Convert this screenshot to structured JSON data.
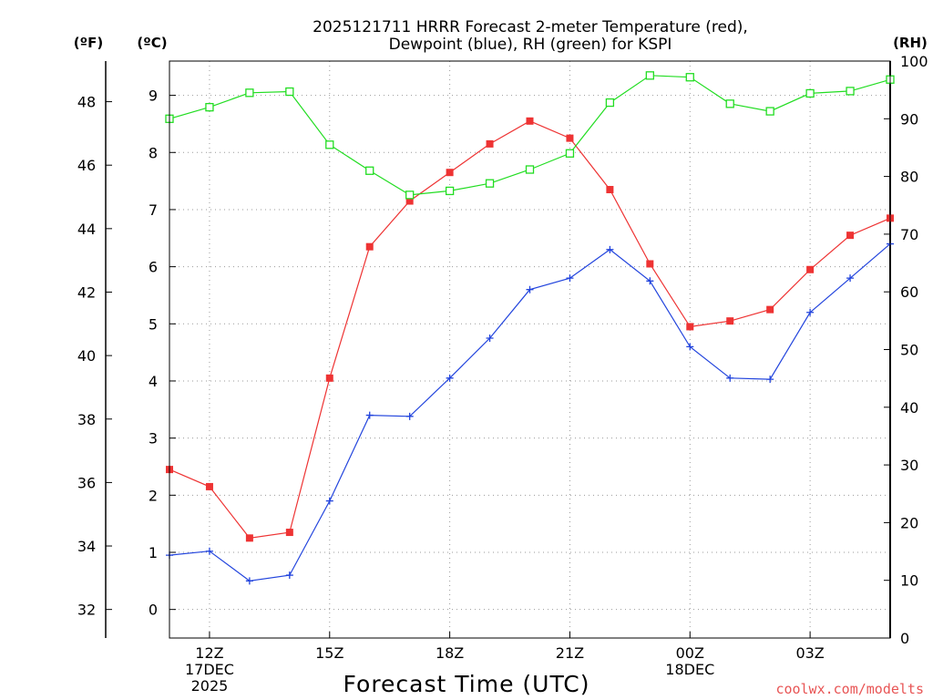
{
  "chart_data": {
    "type": "line",
    "title_line1": "2025121711 HRRR Forecast 2-meter Temperature (red),",
    "title_line2": "Dewpoint (blue), RH (green) for KSPI",
    "xlabel": "Forecast Time (UTC)",
    "credit": "coolwx.com/modelts",
    "units": {
      "fahrenheit": "(ºF)",
      "celsius": "(ºC)",
      "rh": "(RH)"
    },
    "x_hours": [
      11,
      12,
      13,
      14,
      15,
      16,
      17,
      18,
      19,
      20,
      21,
      22,
      23,
      24,
      25,
      26,
      27,
      28,
      29
    ],
    "x_ticks": [
      {
        "hour": 12,
        "lines": [
          "12Z",
          "17DEC",
          "2025"
        ]
      },
      {
        "hour": 15,
        "lines": [
          "15Z"
        ]
      },
      {
        "hour": 18,
        "lines": [
          "18Z"
        ]
      },
      {
        "hour": 21,
        "lines": [
          "21Z"
        ]
      },
      {
        "hour": 24,
        "lines": [
          "00Z",
          "18DEC"
        ]
      },
      {
        "hour": 27,
        "lines": [
          "03Z"
        ]
      }
    ],
    "xlim": [
      11,
      29
    ],
    "celsius_axis": {
      "range": [
        -0.5,
        9.6
      ],
      "ticks": [
        0,
        1,
        2,
        3,
        4,
        5,
        6,
        7,
        8,
        9
      ]
    },
    "fahrenheit_axis": {
      "ticks": [
        32,
        34,
        36,
        38,
        40,
        42,
        44,
        46,
        48
      ]
    },
    "rh_axis": {
      "range": [
        0,
        100
      ],
      "ticks": [
        0,
        10,
        20,
        30,
        40,
        50,
        60,
        70,
        80,
        90,
        100
      ]
    },
    "series": [
      {
        "name": "Temperature",
        "axis": "celsius",
        "color": "#ee3333",
        "marker": "filled-square",
        "values": [
          2.45,
          2.15,
          1.25,
          1.35,
          4.05,
          6.35,
          7.15,
          7.65,
          8.15,
          8.55,
          8.25,
          7.35,
          6.05,
          4.95,
          5.05,
          5.25,
          5.95,
          6.55,
          6.85
        ]
      },
      {
        "name": "Dewpoint",
        "axis": "celsius",
        "color": "#2244dd",
        "marker": "plus",
        "values": [
          0.95,
          1.02,
          0.5,
          0.6,
          1.9,
          3.4,
          3.38,
          4.05,
          4.75,
          5.6,
          5.8,
          6.3,
          5.75,
          4.6,
          4.05,
          4.03,
          5.2,
          5.8,
          6.4
        ]
      },
      {
        "name": "RH",
        "axis": "rh",
        "color": "#22dd22",
        "marker": "open-square",
        "values": [
          90,
          92,
          94.5,
          94.7,
          85.5,
          81,
          76.8,
          77.5,
          78.8,
          81.2,
          84,
          92.8,
          97.5,
          97.2,
          92.6,
          91.3,
          94.4,
          94.8,
          96.8
        ]
      }
    ]
  }
}
